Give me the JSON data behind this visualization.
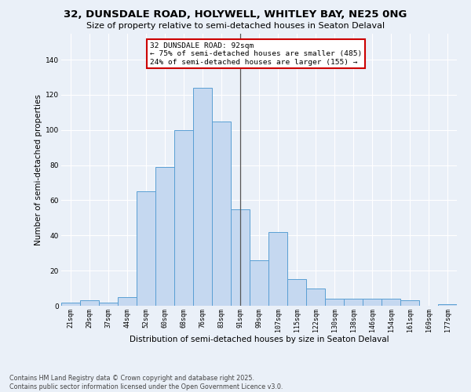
{
  "title": "32, DUNSDALE ROAD, HOLYWELL, WHITLEY BAY, NE25 0NG",
  "subtitle": "Size of property relative to semi-detached houses in Seaton Delaval",
  "xlabel": "Distribution of semi-detached houses by size in Seaton Delaval",
  "ylabel": "Number of semi-detached properties",
  "footnote": "Contains HM Land Registry data © Crown copyright and database right 2025.\nContains public sector information licensed under the Open Government Licence v3.0.",
  "categories": [
    "21sqm",
    "29sqm",
    "37sqm",
    "44sqm",
    "52sqm",
    "60sqm",
    "68sqm",
    "76sqm",
    "83sqm",
    "91sqm",
    "99sqm",
    "107sqm",
    "115sqm",
    "122sqm",
    "130sqm",
    "138sqm",
    "146sqm",
    "154sqm",
    "161sqm",
    "169sqm",
    "177sqm"
  ],
  "values": [
    2,
    3,
    2,
    5,
    65,
    79,
    100,
    124,
    105,
    55,
    26,
    42,
    15,
    10,
    4,
    4,
    4,
    4,
    3,
    0,
    1
  ],
  "bar_color": "#c5d8f0",
  "bar_edge_color": "#5a9fd4",
  "property_label": "32 DUNSDALE ROAD: 92sqm",
  "pct_smaller": 75,
  "n_smaller": 485,
  "pct_larger": 24,
  "n_larger": 155,
  "vline_position": 9.0,
  "annotation_box_color": "#ffffff",
  "annotation_box_edge": "#cc0000",
  "ylim": [
    0,
    155
  ],
  "yticks": [
    0,
    20,
    40,
    60,
    80,
    100,
    120,
    140
  ],
  "background_color": "#eaf0f8",
  "grid_color": "#ffffff",
  "title_fontsize": 9.5,
  "subtitle_fontsize": 8.0,
  "axis_label_fontsize": 7.5,
  "tick_fontsize": 6.0,
  "annotation_fontsize": 6.8,
  "footnote_fontsize": 5.8
}
